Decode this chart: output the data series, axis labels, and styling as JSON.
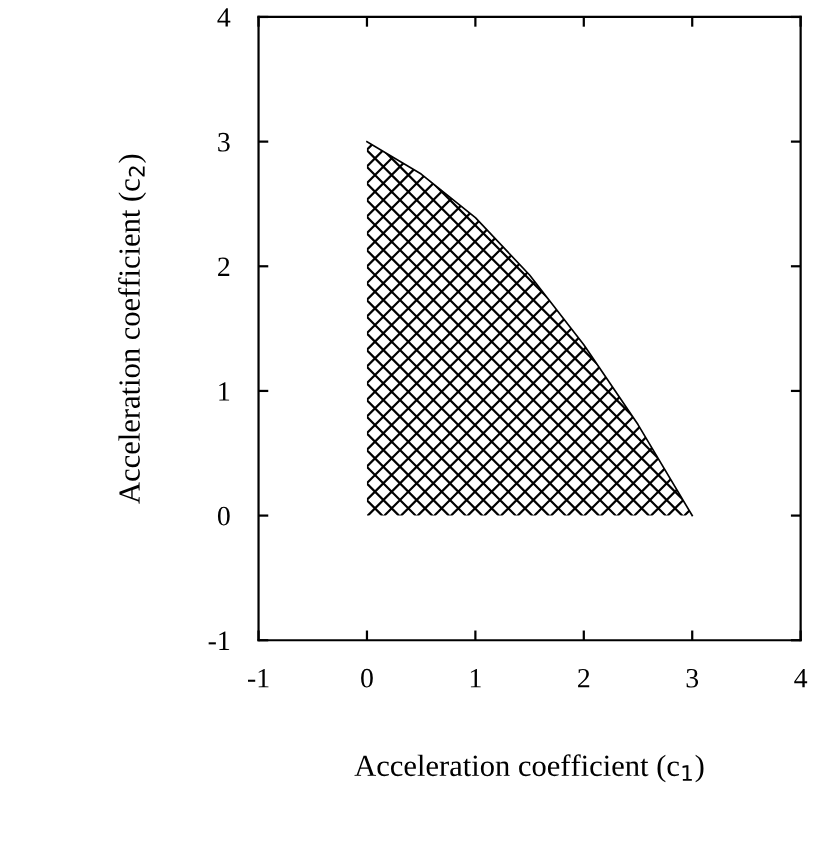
{
  "chart_data": {
    "type": "area",
    "xlabel": "Acceleration coefficient (c$_{1}$)",
    "ylabel": "Acceleration coefficient (c$_{2}$)",
    "x": [
      0,
      0.5,
      1,
      1.5,
      2,
      2.5,
      3
    ],
    "series": [
      {
        "color": "#000000",
        "values": [
          3,
          2.74,
          2.39,
          1.93,
          1.37,
          0.73,
          0
        ]
      }
    ],
    "xlim": [
      -1,
      4
    ],
    "ylim": [
      -1,
      4
    ],
    "xticks": [
      -1,
      0,
      1,
      2,
      3,
      4
    ],
    "yticks": [
      -1,
      0,
      1,
      2,
      3,
      4
    ],
    "grid": false,
    "legend": false
  }
}
